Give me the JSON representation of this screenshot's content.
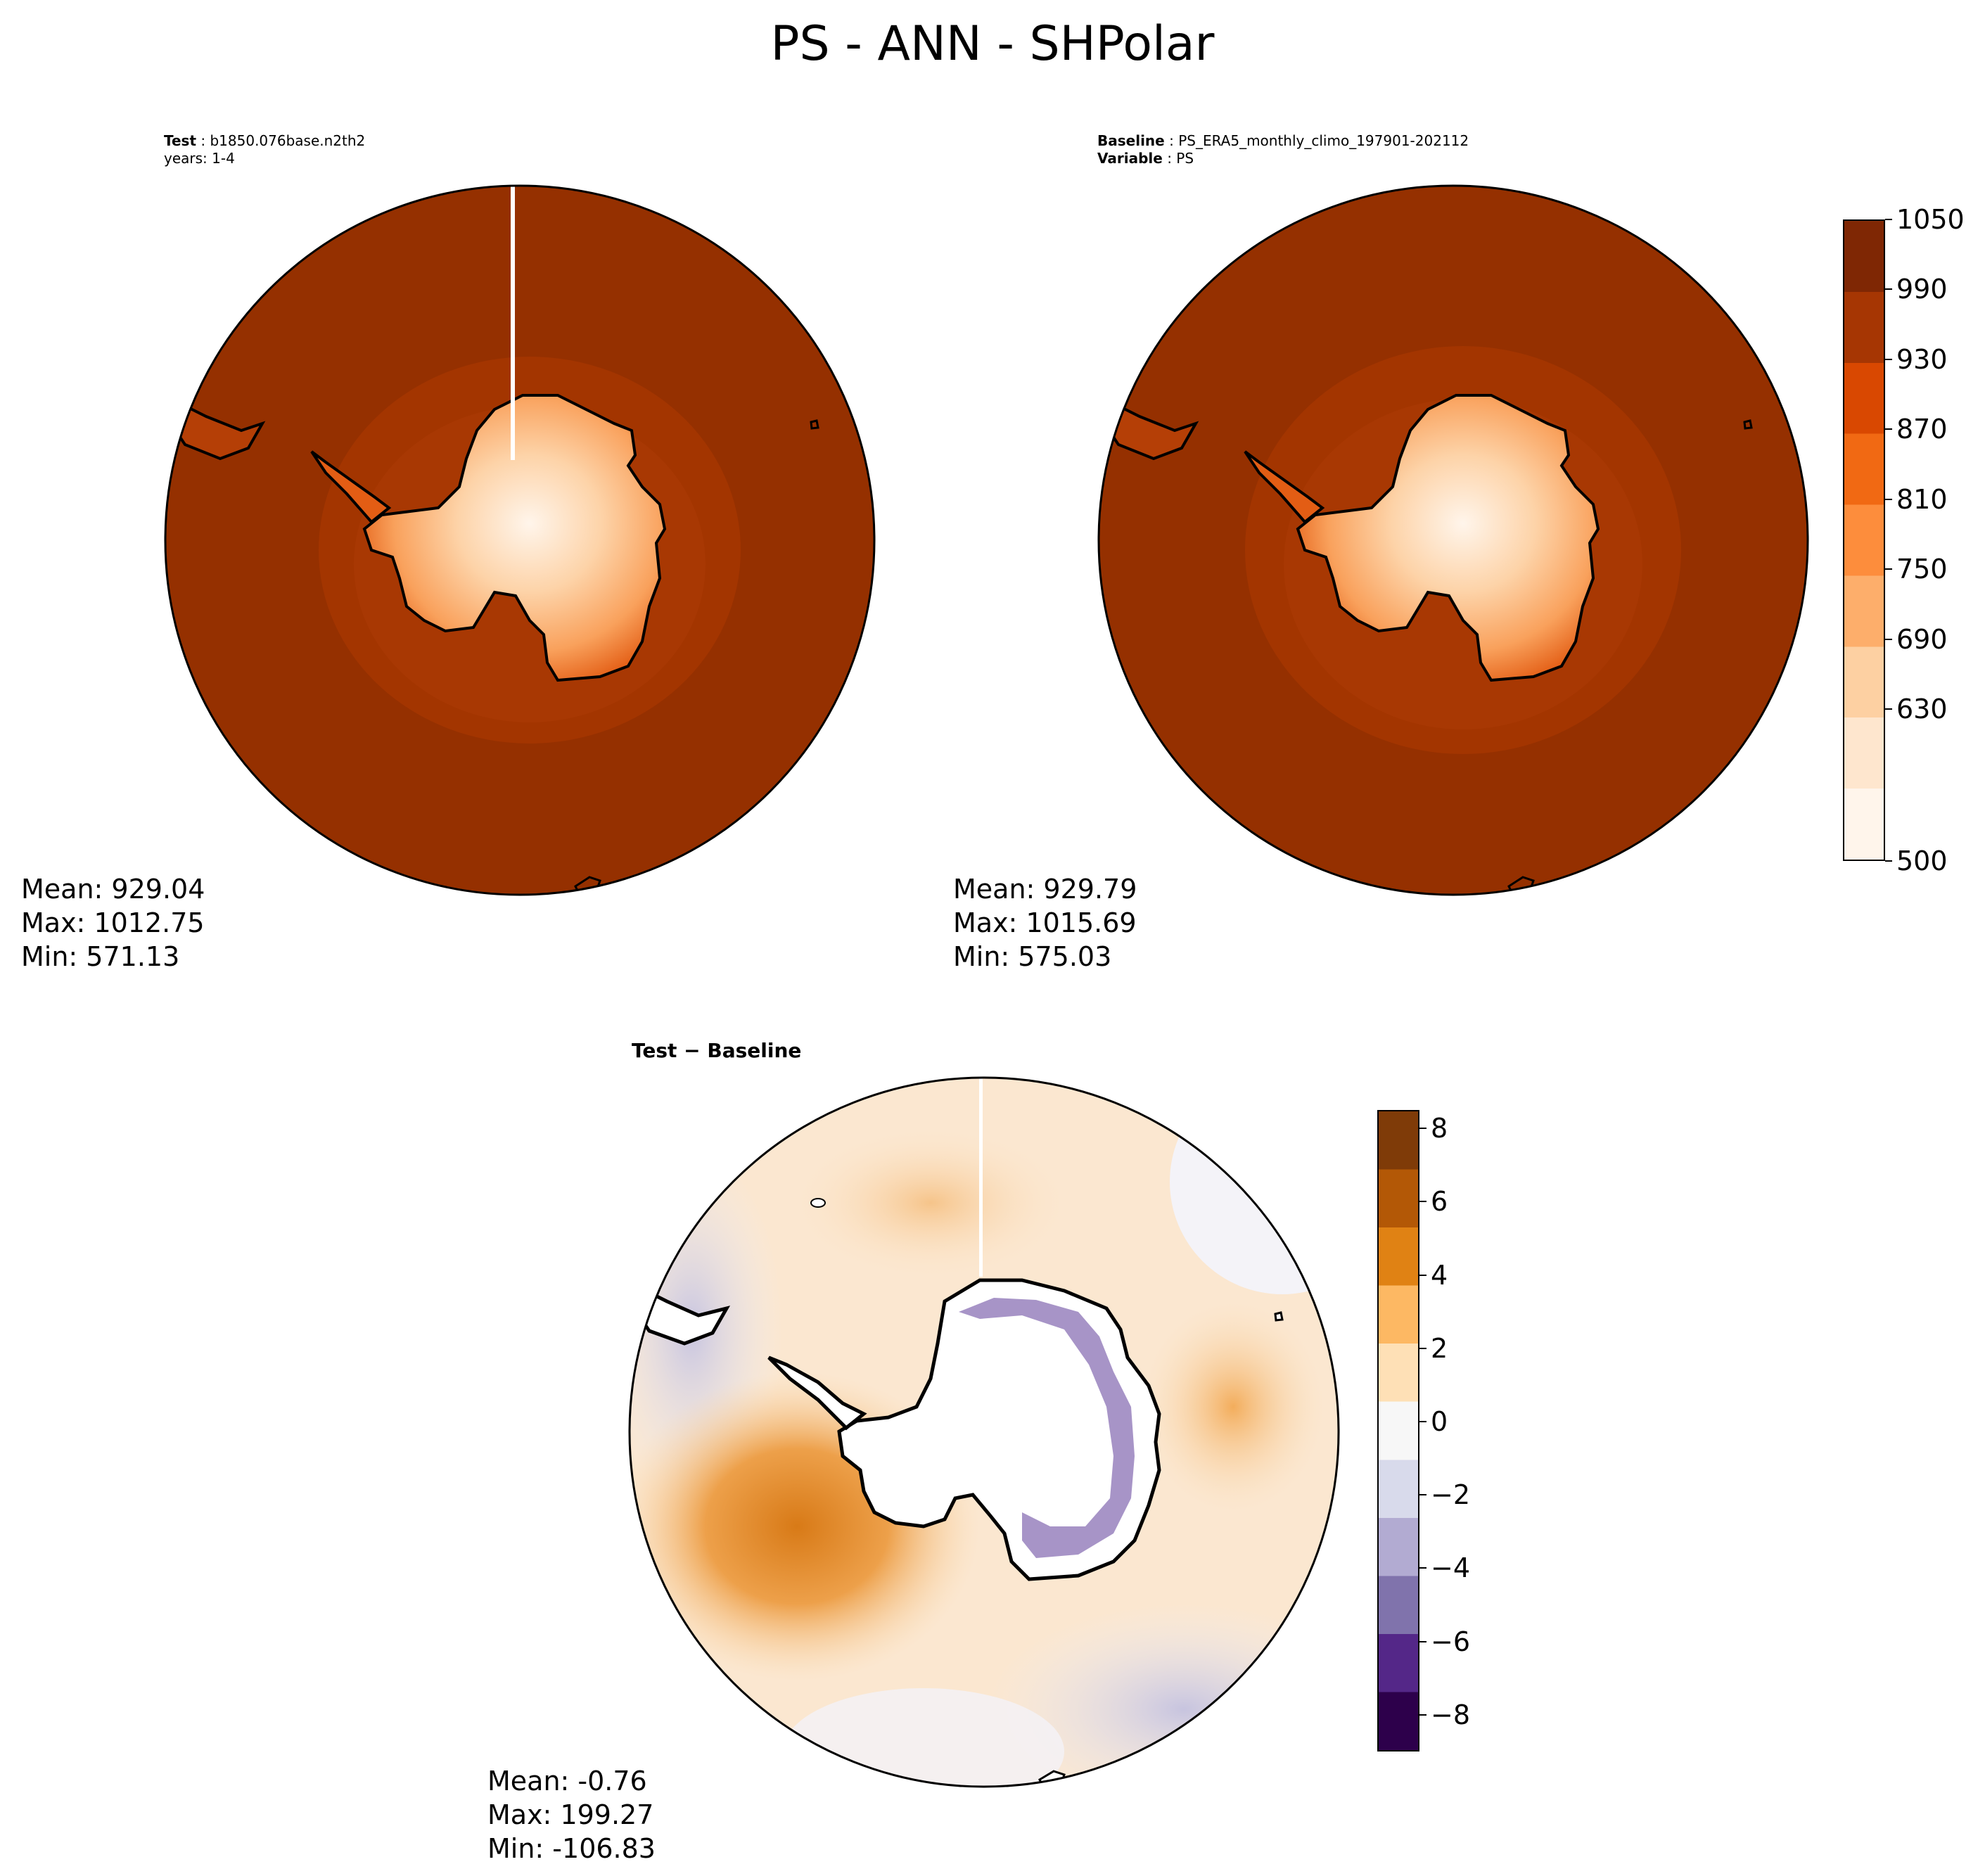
{
  "figure": {
    "title": "PS - ANN - SHPolar"
  },
  "panels": {
    "test": {
      "label": "Test",
      "case": "b1850.076base.n2th2",
      "years": "years: 1-4",
      "mean": "Mean: 929.04",
      "max": "Max: 1012.75",
      "min": "Min: 571.13"
    },
    "baseline": {
      "label": "Baseline",
      "case": "PS_ERA5_monthly_climo_197901-202112",
      "variable_label": "Variable",
      "variable": "PS",
      "mean": "Mean: 929.79",
      "max": "Max: 1015.69",
      "min": "Min: 575.03"
    },
    "difference": {
      "title": "Test − Baseline",
      "mean": "Mean: -0.76",
      "max": "Max: 199.27",
      "min": "Min: -106.83"
    }
  },
  "chart_data": [
    {
      "type": "heatmap",
      "projection": "south-polar-stereographic",
      "panel": "test",
      "variable": "PS",
      "stats": {
        "mean": 929.04,
        "max": 1012.75,
        "min": 571.13
      }
    },
    {
      "type": "heatmap",
      "projection": "south-polar-stereographic",
      "panel": "baseline",
      "variable": "PS",
      "stats": {
        "mean": 929.79,
        "max": 1015.69,
        "min": 575.03
      }
    },
    {
      "type": "heatmap",
      "projection": "south-polar-stereographic",
      "panel": "difference",
      "variable": "PS",
      "stats": {
        "mean": -0.76,
        "max": 199.27,
        "min": -106.83
      }
    }
  ],
  "colorbars": {
    "main": {
      "colormap": "Oranges",
      "range": [
        500,
        1050
      ],
      "ticks": [
        "1050",
        "990",
        "930",
        "870",
        "810",
        "750",
        "690",
        "630",
        "500"
      ],
      "colors": [
        "#fff5eb",
        "#fee6ce",
        "#fdd0a2",
        "#fdae6b",
        "#fd8d3c",
        "#f16913",
        "#d94801",
        "#a63603",
        "#7f2704"
      ]
    },
    "diff": {
      "colormap": "PuOr_r",
      "range": [
        -9,
        8.5
      ],
      "ticks": [
        "8",
        "6",
        "4",
        "2",
        "0",
        "−2",
        "−4",
        "−6",
        "−8"
      ],
      "colors": [
        "#2d004b",
        "#542788",
        "#8073ac",
        "#b2abd2",
        "#d8daeb",
        "#f7f7f7",
        "#fee0b6",
        "#fdb863",
        "#e08214",
        "#b35806",
        "#7f3b08"
      ]
    }
  }
}
